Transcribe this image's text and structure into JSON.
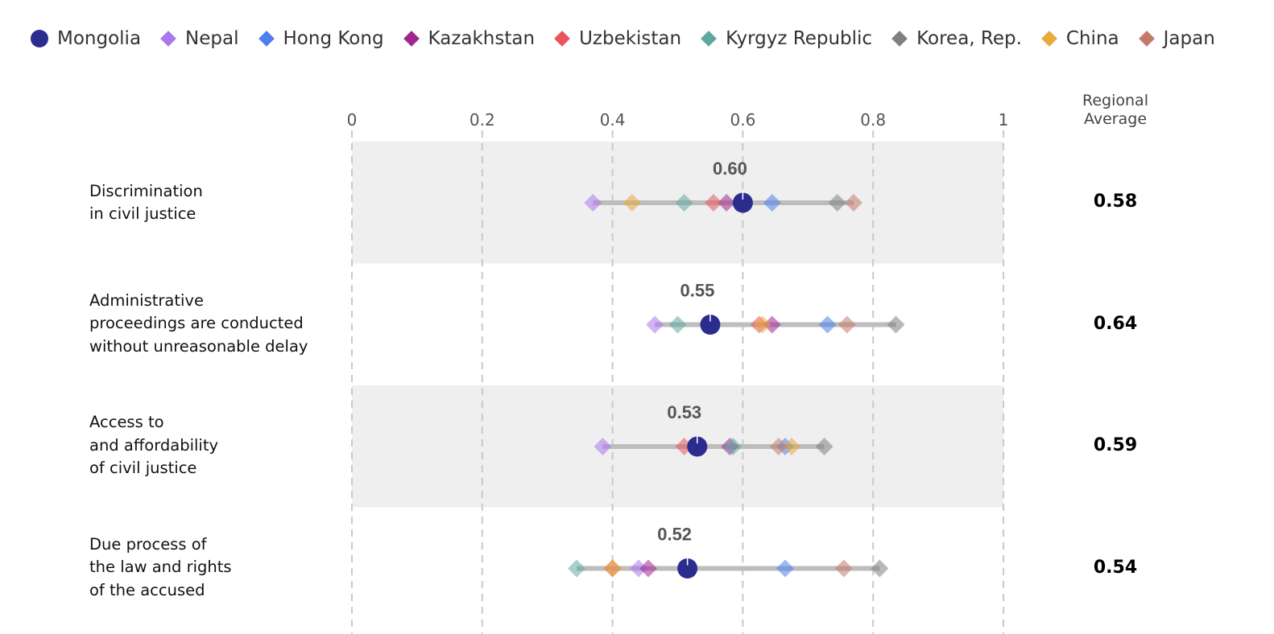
{
  "legend": [
    {
      "name": "Mongolia",
      "color": "#2b2d8e",
      "shape": "circle"
    },
    {
      "name": "Nepal",
      "color": "#a977ef",
      "shape": "diamond"
    },
    {
      "name": "Hong Kong",
      "color": "#4d7fef",
      "shape": "diamond"
    },
    {
      "name": "Kazakhstan",
      "color": "#a0278f",
      "shape": "diamond"
    },
    {
      "name": "Uzbekistan",
      "color": "#e8555d",
      "shape": "diamond"
    },
    {
      "name": "Kyrgyz Republic",
      "color": "#5ea8a2",
      "shape": "diamond"
    },
    {
      "name": "Korea, Rep.",
      "color": "#7f7f7f",
      "shape": "diamond"
    },
    {
      "name": "China",
      "color": "#e8aa3b",
      "shape": "diamond"
    },
    {
      "name": "Japan",
      "color": "#c27a6a",
      "shape": "diamond"
    }
  ],
  "regional_average_header": [
    "Regional",
    "Average"
  ],
  "chart_data": {
    "type": "scatter",
    "xlim": [
      0,
      1
    ],
    "xticks": [
      "0",
      "0.2",
      "0.4",
      "0.6",
      "0.8",
      "1"
    ],
    "highlight_series": "Mongolia",
    "rows": [
      {
        "label_lines": [
          "Discrimination",
          "in civil justice"
        ],
        "highlight_label": "0.60",
        "regional_average": "0.58",
        "values": {
          "Mongolia": 0.6,
          "Nepal": 0.37,
          "Hong Kong": 0.645,
          "Kazakhstan": 0.575,
          "Uzbekistan": 0.555,
          "Kyrgyz Republic": 0.51,
          "Korea, Rep.": 0.745,
          "China": 0.43,
          "Japan": 0.77
        }
      },
      {
        "label_lines": [
          "Administrative",
          "proceedings are conducted",
          "without unreasonable delay"
        ],
        "highlight_label": "0.55",
        "regional_average": "0.64",
        "values": {
          "Mongolia": 0.55,
          "Nepal": 0.465,
          "Hong Kong": 0.73,
          "Kazakhstan": 0.645,
          "Uzbekistan": 0.625,
          "Kyrgyz Republic": 0.5,
          "Korea, Rep.": 0.835,
          "China": 0.63,
          "Japan": 0.76
        }
      },
      {
        "label_lines": [
          "Access to",
          "and affordability",
          "of civil justice"
        ],
        "highlight_label": "0.53",
        "regional_average": "0.59",
        "values": {
          "Mongolia": 0.53,
          "Nepal": 0.385,
          "Hong Kong": 0.665,
          "Kazakhstan": 0.58,
          "Uzbekistan": 0.51,
          "Kyrgyz Republic": 0.585,
          "Korea, Rep.": 0.725,
          "China": 0.675,
          "Japan": 0.655
        }
      },
      {
        "label_lines": [
          "Due process of",
          "the law and rights",
          "of the accused"
        ],
        "highlight_label": "0.52",
        "regional_average": "0.54",
        "values": {
          "Mongolia": 0.515,
          "Nepal": 0.44,
          "Hong Kong": 0.665,
          "Kazakhstan": 0.455,
          "Uzbekistan": 0.4,
          "Kyrgyz Republic": 0.345,
          "Korea, Rep.": 0.81,
          "China": 0.4,
          "Japan": 0.755
        }
      }
    ]
  }
}
